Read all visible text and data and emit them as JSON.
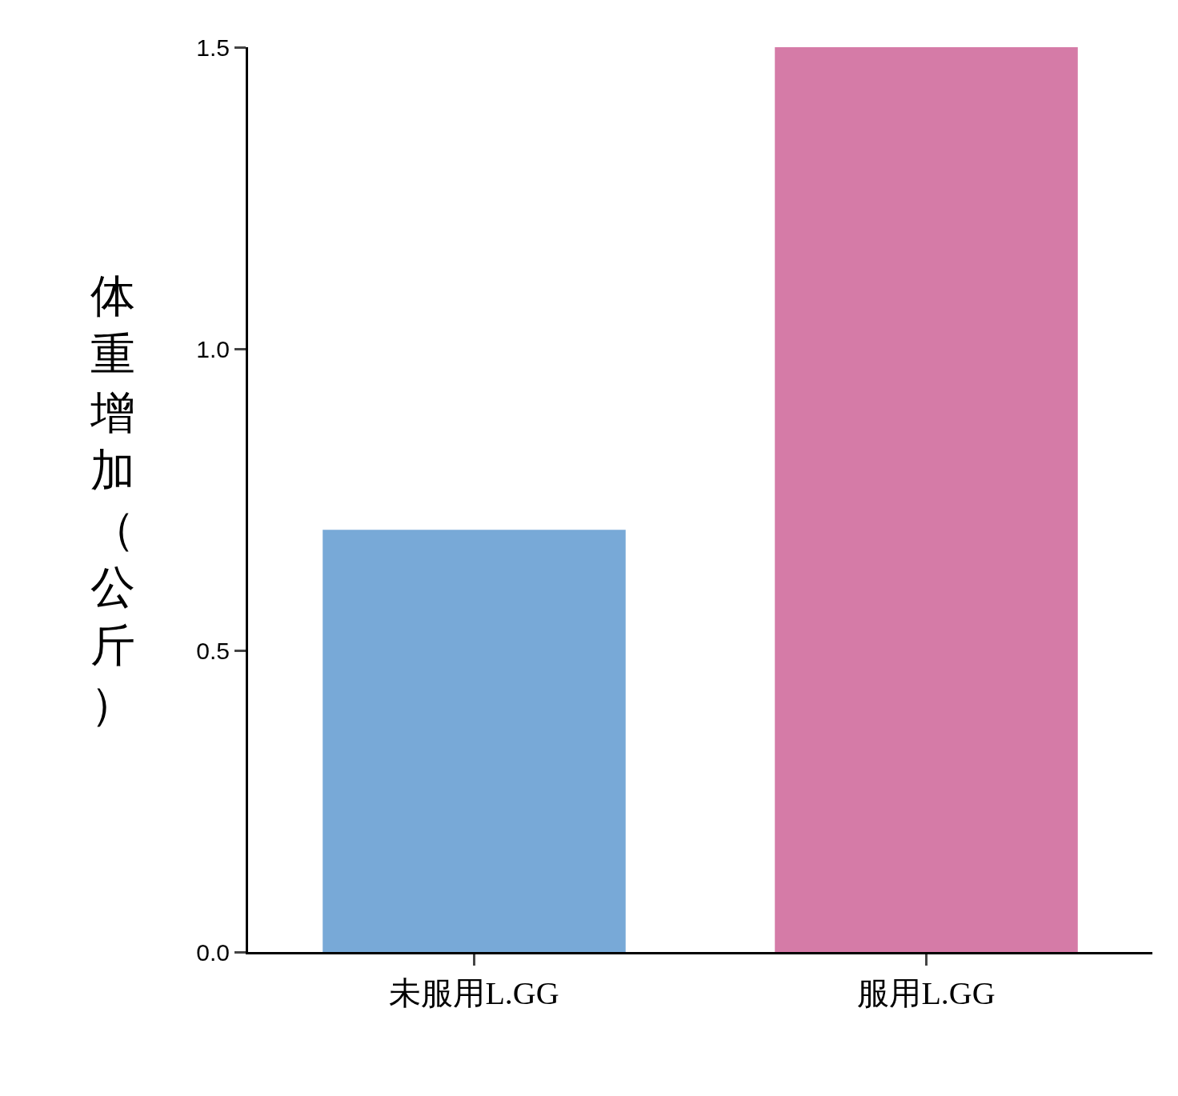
{
  "chart_data": {
    "type": "bar",
    "ylabel": "体重增加（公斤）",
    "categories": [
      "未服用L.GG",
      "服用L.GG"
    ],
    "values": [
      0.7,
      1.5
    ],
    "colors": [
      "#78a9d7",
      "#d57ba7"
    ],
    "ylim": [
      0,
      1.5
    ],
    "yticks": [
      {
        "value": 0,
        "label": "0.0"
      },
      0.5,
      {
        "value": 1,
        "label": "1.0"
      },
      1.5
    ]
  }
}
